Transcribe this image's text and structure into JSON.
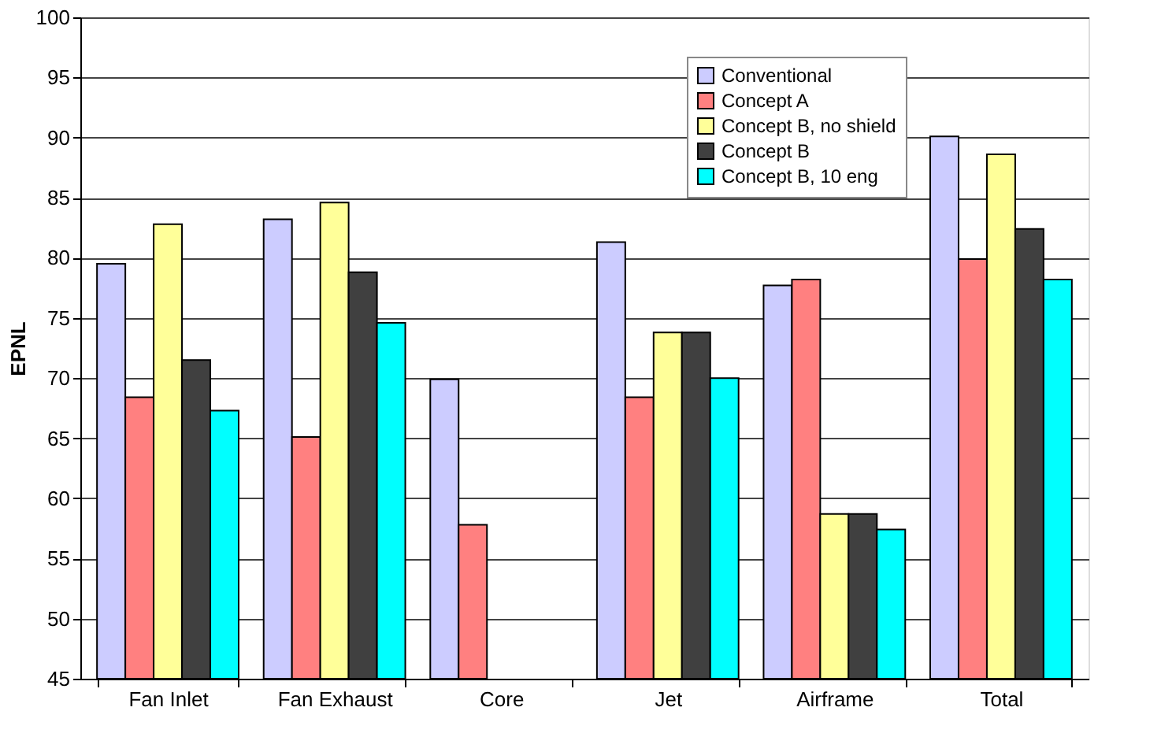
{
  "chart_data": {
    "type": "bar",
    "ylabel": "EPNL",
    "categories": [
      "Fan Inlet",
      "Fan Exhaust",
      "Core",
      "Jet",
      "Airframe",
      "Total"
    ],
    "series": [
      {
        "name": "Conventional",
        "color": "#ccccff",
        "values": [
          79.5,
          83.2,
          69.9,
          81.3,
          77.7,
          90.1
        ]
      },
      {
        "name": "Concept A",
        "color": "#ff8080",
        "values": [
          68.4,
          65.1,
          57.8,
          68.4,
          78.2,
          79.9
        ]
      },
      {
        "name": "Concept B, no shield",
        "color": "#ffff99",
        "values": [
          82.8,
          84.6,
          null,
          73.8,
          58.7,
          88.6
        ]
      },
      {
        "name": "Concept B",
        "color": "#404040",
        "values": [
          71.5,
          78.8,
          null,
          73.8,
          58.7,
          82.4
        ]
      },
      {
        "name": "Concept B, 10 eng",
        "color": "#00ffff",
        "values": [
          67.3,
          74.6,
          null,
          70.0,
          57.4,
          78.2
        ]
      }
    ],
    "ylim": [
      45,
      100
    ],
    "yticks": [
      45,
      50,
      55,
      60,
      65,
      70,
      75,
      80,
      85,
      90,
      95,
      100
    ],
    "grid": "y",
    "legend": "top right"
  }
}
